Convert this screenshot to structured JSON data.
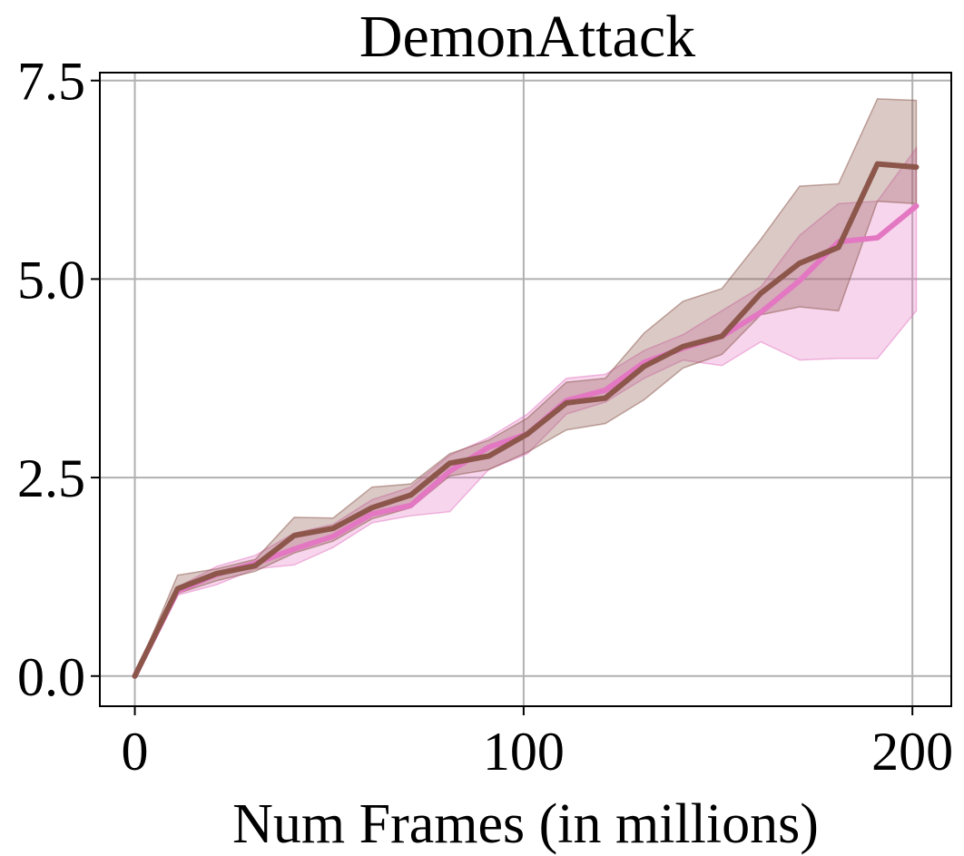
{
  "chart_data": {
    "type": "line",
    "title": "DemonAttack",
    "xlabel": "Num Frames (in millions)",
    "ylabel": "",
    "xlim": [
      -9,
      210
    ],
    "ylim": [
      -0.38,
      7.6
    ],
    "grid": true,
    "xticks": [
      0,
      100,
      200
    ],
    "xtick_labels": [
      "0",
      "100",
      "200"
    ],
    "yticks": [
      0.0,
      2.5,
      5.0,
      7.5
    ],
    "ytick_labels": [
      "0.0",
      "2.5",
      "5.0",
      "7.5"
    ],
    "x": [
      0,
      11,
      21,
      31,
      41,
      51,
      61,
      71,
      81,
      91,
      101,
      111,
      121,
      131,
      141,
      151,
      161,
      171,
      181,
      191,
      201
    ],
    "series": [
      {
        "color": "#e377c2",
        "values": [
          0.0,
          1.07,
          1.28,
          1.42,
          1.6,
          1.76,
          2.04,
          2.15,
          2.58,
          2.88,
          3.05,
          3.47,
          3.6,
          3.95,
          4.13,
          4.28,
          4.58,
          4.98,
          5.47,
          5.52,
          5.92
        ],
        "lower": [
          0.0,
          1.02,
          1.15,
          1.35,
          1.4,
          1.62,
          1.93,
          2.02,
          2.07,
          2.6,
          2.8,
          3.3,
          3.45,
          3.75,
          3.98,
          3.91,
          4.21,
          3.98,
          4.0,
          4.0,
          4.6
        ],
        "upper": [
          0.0,
          1.12,
          1.38,
          1.52,
          1.8,
          1.91,
          2.22,
          2.38,
          2.78,
          3.0,
          3.3,
          3.75,
          3.8,
          4.1,
          4.3,
          4.6,
          4.9,
          5.55,
          5.95,
          5.98,
          6.65
        ]
      },
      {
        "color": "#8c564b",
        "values": [
          0.0,
          1.1,
          1.29,
          1.39,
          1.77,
          1.86,
          2.12,
          2.28,
          2.68,
          2.77,
          3.05,
          3.44,
          3.5,
          3.9,
          4.15,
          4.28,
          4.82,
          5.2,
          5.4,
          6.45,
          6.41
        ],
        "lower": [
          0.0,
          1.04,
          1.2,
          1.32,
          1.55,
          1.7,
          1.98,
          2.12,
          2.52,
          2.6,
          2.82,
          3.1,
          3.18,
          3.48,
          3.88,
          4.05,
          4.55,
          4.65,
          4.6,
          5.98,
          5.95
        ],
        "upper": [
          0.0,
          1.27,
          1.35,
          1.47,
          2.0,
          1.99,
          2.38,
          2.42,
          2.8,
          2.97,
          3.25,
          3.7,
          3.75,
          4.32,
          4.72,
          4.88,
          5.5,
          6.17,
          6.2,
          7.27,
          7.25
        ]
      }
    ]
  }
}
